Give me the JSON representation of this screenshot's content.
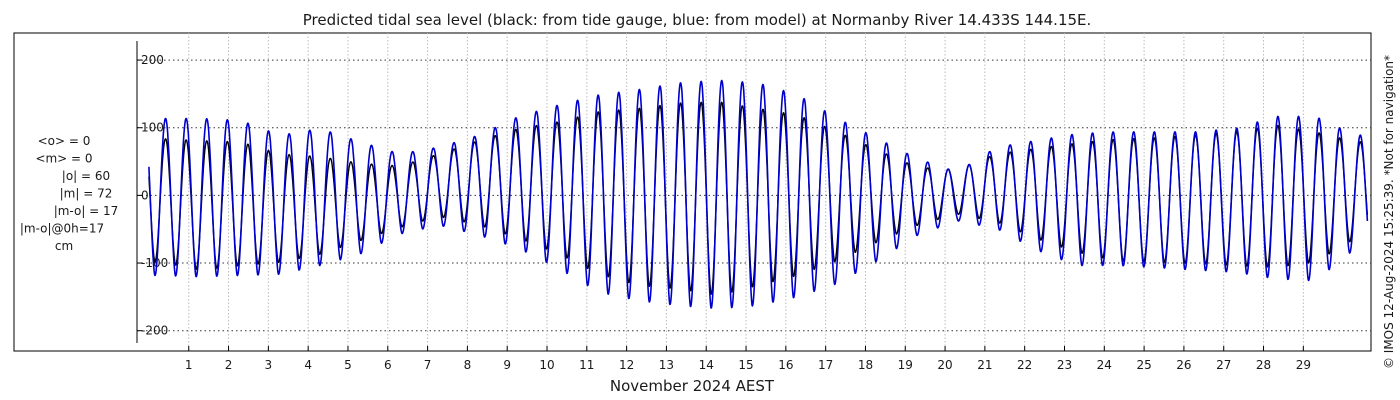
{
  "chart_data": {
    "type": "line",
    "title": "Predicted tidal sea level (black: from tide gauge, blue: from model) at Normanby River 14.433S 144.15E.",
    "xlabel": "November 2024 AEST",
    "ylabel": "",
    "x_range_days": [
      -0.3,
      30.7
    ],
    "ylim": [
      -230,
      240
    ],
    "y_ticks": [
      200,
      100,
      0,
      -100,
      -200
    ],
    "x_ticks": [
      1,
      2,
      3,
      4,
      5,
      6,
      7,
      8,
      9,
      10,
      11,
      12,
      13,
      14,
      15,
      16,
      17,
      18,
      19,
      20,
      21,
      22,
      23,
      24,
      25,
      26,
      27,
      28,
      29
    ],
    "grid": true,
    "legend": "none",
    "stats_lines": [
      "<o> = 0",
      "<m> = 0",
      "|o| = 60",
      "|m| = 72",
      "|m-o| = 17",
      "|m-o|@0h=17",
      "cm"
    ],
    "credit": "© IMOS 12-Aug-2024 15:25:39. *Not for navigation*",
    "series": [
      {
        "color": "#000000",
        "values_note_omitted": true,
        "envelope": [
          [
            0.3,
            85,
            -100
          ],
          [
            1.3,
            82,
            -112
          ],
          [
            2.3,
            80,
            -105
          ],
          [
            3.3,
            62,
            -100
          ],
          [
            4.3,
            58,
            -88
          ],
          [
            5.3,
            48,
            -68
          ],
          [
            6.3,
            44,
            -48
          ],
          [
            7.3,
            62,
            -32
          ],
          [
            8.3,
            82,
            -45
          ],
          [
            9.3,
            100,
            -65
          ],
          [
            10.3,
            110,
            -88
          ],
          [
            11.3,
            125,
            -118
          ],
          [
            12.3,
            130,
            -135
          ],
          [
            13.3,
            138,
            -140
          ],
          [
            14.3,
            140,
            -150
          ],
          [
            15.3,
            130,
            -135
          ],
          [
            16.3,
            120,
            -120
          ],
          [
            17.3,
            95,
            -98
          ],
          [
            18.3,
            68,
            -70
          ],
          [
            19.3,
            42,
            -45
          ],
          [
            20.3,
            38,
            -28
          ],
          [
            21.3,
            62,
            -40
          ],
          [
            22.3,
            70,
            -65
          ],
          [
            23.3,
            78,
            -85
          ],
          [
            24.3,
            84,
            -98
          ],
          [
            25.3,
            86,
            -100
          ],
          [
            26.3,
            90,
            -102
          ],
          [
            27.3,
            95,
            -105
          ],
          [
            28.3,
            105,
            -108
          ],
          [
            29.3,
            95,
            -100
          ],
          [
            30.3,
            80,
            -65
          ]
        ]
      },
      {
        "color": "#0000cc",
        "envelope": [
          [
            0.3,
            115,
            -120
          ],
          [
            1.3,
            115,
            -122
          ],
          [
            2.3,
            112,
            -120
          ],
          [
            3.3,
            90,
            -118
          ],
          [
            4.3,
            100,
            -105
          ],
          [
            5.3,
            80,
            -88
          ],
          [
            6.3,
            62,
            -58
          ],
          [
            7.3,
            72,
            -45
          ],
          [
            8.3,
            90,
            -60
          ],
          [
            9.3,
            118,
            -80
          ],
          [
            10.3,
            135,
            -110
          ],
          [
            11.3,
            150,
            -145
          ],
          [
            12.3,
            158,
            -158
          ],
          [
            13.3,
            168,
            -165
          ],
          [
            14.3,
            172,
            -170
          ],
          [
            15.3,
            168,
            -165
          ],
          [
            16.3,
            150,
            -152
          ],
          [
            17.3,
            115,
            -132
          ],
          [
            18.3,
            85,
            -98
          ],
          [
            19.3,
            55,
            -60
          ],
          [
            20.3,
            35,
            -38
          ],
          [
            21.3,
            72,
            -50
          ],
          [
            22.3,
            82,
            -82
          ],
          [
            23.3,
            92,
            -105
          ],
          [
            24.3,
            95,
            -105
          ],
          [
            25.3,
            95,
            -108
          ],
          [
            26.3,
            95,
            -112
          ],
          [
            27.3,
            100,
            -115
          ],
          [
            28.3,
            118,
            -125
          ],
          [
            29.3,
            118,
            -128
          ],
          [
            30.3,
            90,
            -80
          ]
        ]
      }
    ]
  }
}
